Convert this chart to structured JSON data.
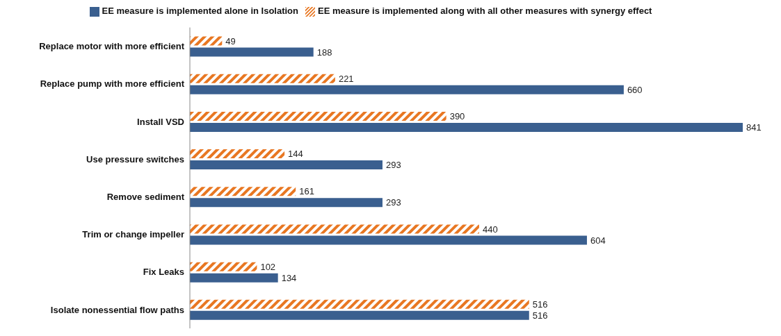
{
  "chart_data": {
    "type": "bar",
    "orientation": "horizontal",
    "categories": [
      "Replace motor with more efficient",
      "Replace pump with more efficient",
      "Install VSD",
      "Use pressure switches",
      "Remove sediment",
      "Trim or change impeller",
      "Fix Leaks",
      "Isolate nonessential flow paths"
    ],
    "series": [
      {
        "name": "EE measure is implemented along with all other measures with synergy effect",
        "color": "#e87722",
        "values": [
          49,
          221,
          390,
          144,
          161,
          440,
          102,
          516
        ]
      },
      {
        "name": "EE measure is implemented alone in Isolation",
        "color": "#3a5f8f",
        "values": [
          188,
          660,
          841,
          293,
          293,
          604,
          134,
          516
        ]
      }
    ],
    "data_labels": true,
    "legend": "top",
    "grid": false
  }
}
